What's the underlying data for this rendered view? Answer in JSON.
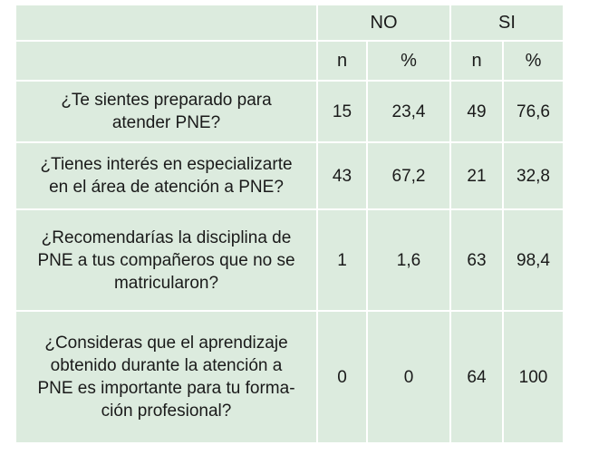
{
  "header": {
    "group_no": "NO",
    "group_si": "SI",
    "n_label": "n",
    "pct_label": "%"
  },
  "rows": [
    {
      "question": "¿Te sientes preparado para atender PNE?",
      "no_n": "15",
      "no_pct": "23,4",
      "si_n": "49",
      "si_pct": "76,6"
    },
    {
      "question": "¿Tienes interés en especializarte en el área de atención a PNE?",
      "no_n": "43",
      "no_pct": "67,2",
      "si_n": "21",
      "si_pct": "32,8"
    },
    {
      "question": "¿Recomendarías la disciplina de PNE a tus compañeros que no se matricularon?",
      "no_n": "1",
      "no_pct": "1,6",
      "si_n": "63",
      "si_pct": "98,4"
    },
    {
      "question": "¿Consideras que el aprendizaje obtenido durante la atención a PNE es importante para tu forma-ción profesional?",
      "no_n": "0",
      "no_pct": "0",
      "si_n": "64",
      "si_pct": "100"
    }
  ]
}
